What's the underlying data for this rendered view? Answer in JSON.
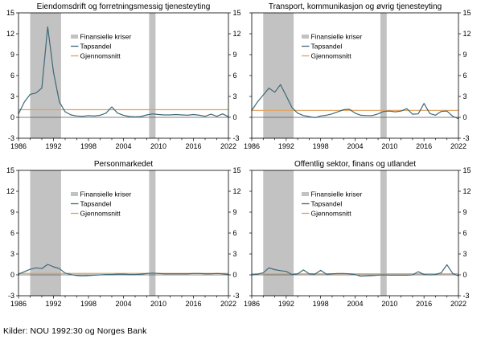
{
  "caption": "Kilder: NOU 1992:30 og Norges Bank",
  "legend": {
    "crisis": "Finansielle kriser",
    "series": "Tapsandel",
    "average": "Gjennomsnitt"
  },
  "colors": {
    "crisis_band": "#c2c2c2",
    "series_line": "#3d6879",
    "average_line": "#e2a158",
    "zero_line": "#595959",
    "axis": "#000000",
    "text": "#000000",
    "background": "#ffffff"
  },
  "chart_data": [
    {
      "type": "line",
      "title": "Eiendomsdrift og forretningsmessig tjenesteyting",
      "x_start": 1986,
      "x_step": 1,
      "x_range": [
        1986,
        2022
      ],
      "y_range": [
        -3,
        15
      ],
      "x_major_ticks": [
        1986,
        1992,
        1998,
        2004,
        2010,
        2016,
        2022
      ],
      "x_minor_step": 2,
      "y_ticks": [
        -3,
        0,
        3,
        6,
        9,
        12,
        15
      ],
      "grid": false,
      "legend_position": "upper-left-inside",
      "crisis_bands": [
        [
          1988.0,
          1993.3
        ],
        [
          2008.4,
          2009.5
        ]
      ],
      "average": 1.1,
      "values": [
        0.5,
        2.2,
        3.3,
        3.5,
        4.2,
        13.0,
        6.5,
        2.2,
        0.8,
        0.35,
        0.2,
        0.15,
        0.25,
        0.2,
        0.3,
        0.6,
        1.5,
        0.6,
        0.3,
        0.12,
        0.08,
        0.12,
        0.35,
        0.5,
        0.4,
        0.35,
        0.35,
        0.4,
        0.35,
        0.3,
        0.4,
        0.3,
        0.15,
        0.45,
        0.15,
        0.5,
        0.08
      ]
    },
    {
      "type": "line",
      "title": "Transport, kommunikasjon og øvrig tjenesteyting",
      "x_start": 1986,
      "x_step": 1,
      "x_range": [
        1986,
        2022
      ],
      "y_range": [
        -3,
        15
      ],
      "x_major_ticks": [
        1986,
        1992,
        1998,
        2004,
        2010,
        2016,
        2022
      ],
      "x_minor_step": 2,
      "y_ticks": [
        -3,
        0,
        3,
        6,
        9,
        12,
        15
      ],
      "grid": false,
      "legend_position": "upper-left-inside",
      "crisis_bands": [
        [
          1988.0,
          1993.3
        ],
        [
          2008.4,
          2009.5
        ]
      ],
      "average": 1.0,
      "values": [
        1.0,
        2.2,
        3.2,
        4.2,
        3.6,
        4.7,
        3.1,
        1.4,
        0.6,
        0.25,
        0.1,
        -0.05,
        0.2,
        0.3,
        0.5,
        0.8,
        1.1,
        1.15,
        0.6,
        0.3,
        0.25,
        0.25,
        0.5,
        0.85,
        0.9,
        0.8,
        0.9,
        1.25,
        0.45,
        0.5,
        2.0,
        0.55,
        0.3,
        0.85,
        0.9,
        0.15,
        -0.2
      ]
    },
    {
      "type": "line",
      "title": "Personmarkedet",
      "x_start": 1986,
      "x_step": 1,
      "x_range": [
        1986,
        2022
      ],
      "y_range": [
        -3,
        15
      ],
      "x_major_ticks": [
        1986,
        1992,
        1998,
        2004,
        2010,
        2016,
        2022
      ],
      "x_minor_step": 2,
      "y_ticks": [
        -3,
        0,
        3,
        6,
        9,
        12,
        15
      ],
      "grid": false,
      "legend_position": "upper-left-inside",
      "crisis_bands": [
        [
          1988.0,
          1993.3
        ],
        [
          2008.4,
          2009.5
        ]
      ],
      "average": 0.2,
      "values": [
        0.1,
        0.45,
        0.8,
        1.0,
        0.9,
        1.5,
        1.15,
        0.9,
        0.25,
        0.05,
        -0.1,
        -0.15,
        -0.1,
        -0.05,
        0.0,
        0.05,
        0.05,
        0.1,
        0.1,
        0.05,
        0.05,
        0.1,
        0.2,
        0.25,
        0.2,
        0.15,
        0.15,
        0.15,
        0.15,
        0.15,
        0.2,
        0.2,
        0.15,
        0.15,
        0.2,
        0.15,
        0.05
      ]
    },
    {
      "type": "line",
      "title": "Offentlig sektor, finans og utlandet",
      "x_start": 1986,
      "x_step": 1,
      "x_range": [
        1986,
        2022
      ],
      "y_range": [
        -3,
        15
      ],
      "x_major_ticks": [
        1986,
        1992,
        1998,
        2004,
        2010,
        2016,
        2022
      ],
      "x_minor_step": 2,
      "y_ticks": [
        -3,
        0,
        3,
        6,
        9,
        12,
        15
      ],
      "grid": false,
      "legend_position": "upper-left-inside",
      "crisis_bands": [
        [
          1988.0,
          1993.3
        ],
        [
          2008.4,
          2009.5
        ]
      ],
      "average": 0.15,
      "values": [
        0.0,
        0.1,
        0.3,
        1.0,
        0.75,
        0.6,
        0.5,
        0.05,
        0.15,
        0.7,
        0.15,
        0.1,
        0.65,
        0.1,
        0.15,
        0.2,
        0.2,
        0.15,
        0.05,
        -0.2,
        -0.15,
        -0.1,
        -0.05,
        0.0,
        -0.05,
        -0.05,
        -0.05,
        -0.05,
        0.0,
        0.45,
        0.05,
        0.0,
        0.05,
        0.3,
        1.45,
        0.2,
        -0.15
      ]
    }
  ]
}
